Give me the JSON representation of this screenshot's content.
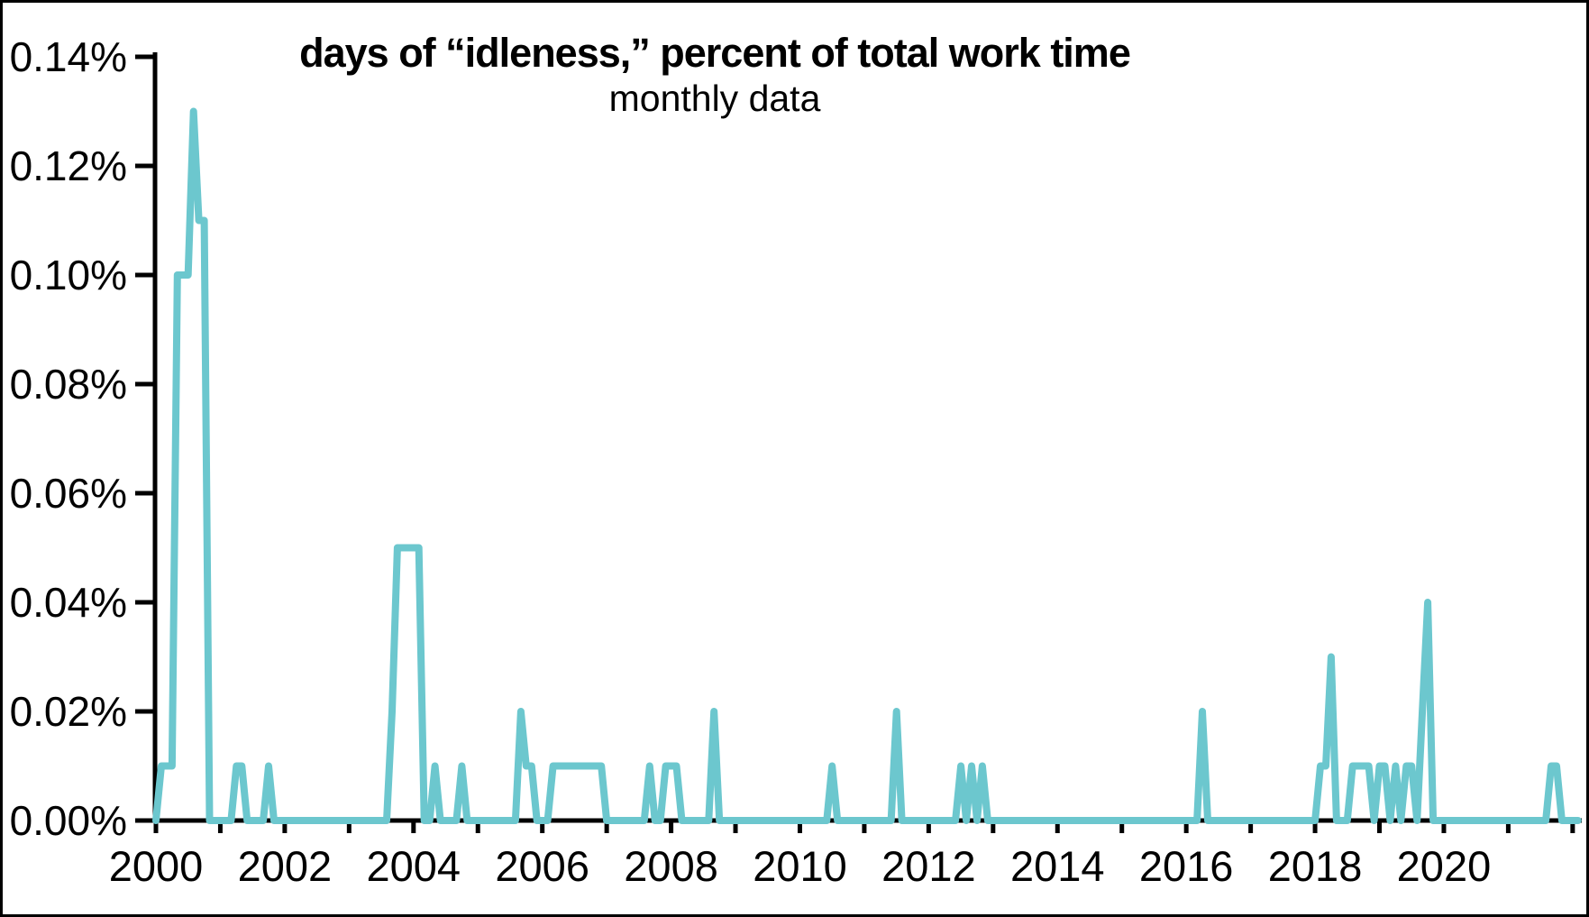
{
  "chart_data": {
    "type": "line",
    "title": "days of “idleness,” percent of total work time",
    "subtitle": "monthly data",
    "frequency": "monthly",
    "unit": "percent of total work time",
    "x_start": "2000-01",
    "x_end": "2022-02",
    "ylim": [
      0,
      0.14
    ],
    "y_tick_step": 0.02,
    "y_tick_labels": [
      "0.14%",
      "0.12%",
      "0.10%",
      "0.08%",
      "0.06%",
      "0.04%",
      "0.02%",
      "0.00%"
    ],
    "x_tick_labeled_years": [
      2000,
      2002,
      2004,
      2006,
      2008,
      2010,
      2012,
      2014,
      2016,
      2018,
      2020
    ],
    "x_minor_ticks": "one tick per year, 2000 through 2022",
    "grid": false,
    "legend": "none",
    "line_color": "#6CC7CE",
    "axis_color": "#000000",
    "background_color": "#FFFFFF",
    "fill_value": 0,
    "nonzero_points": {
      "2000-02": 0.01,
      "2000-03": 0.01,
      "2000-04": 0.01,
      "2000-05": 0.1,
      "2000-06": 0.1,
      "2000-07": 0.1,
      "2000-08": 0.13,
      "2000-09": 0.11,
      "2000-10": 0.11,
      "2001-04": 0.01,
      "2001-05": 0.01,
      "2001-10": 0.01,
      "2003-09": 0.02,
      "2003-10": 0.05,
      "2003-11": 0.05,
      "2003-12": 0.05,
      "2004-01": 0.05,
      "2004-02": 0.05,
      "2004-05": 0.01,
      "2004-10": 0.01,
      "2005-09": 0.02,
      "2005-10": 0.01,
      "2005-11": 0.01,
      "2006-03": 0.01,
      "2006-04": 0.01,
      "2006-05": 0.01,
      "2006-06": 0.01,
      "2006-07": 0.01,
      "2006-08": 0.01,
      "2006-09": 0.01,
      "2006-10": 0.01,
      "2006-11": 0.01,
      "2006-12": 0.01,
      "2007-09": 0.01,
      "2007-12": 0.01,
      "2008-01": 0.01,
      "2008-02": 0.01,
      "2008-09": 0.02,
      "2010-07": 0.01,
      "2011-07": 0.02,
      "2012-07": 0.01,
      "2012-09": 0.01,
      "2012-11": 0.01,
      "2016-04": 0.02,
      "2018-02": 0.01,
      "2018-03": 0.01,
      "2018-04": 0.03,
      "2018-08": 0.01,
      "2018-09": 0.01,
      "2018-10": 0.01,
      "2018-11": 0.01,
      "2019-01": 0.01,
      "2019-02": 0.01,
      "2019-04": 0.01,
      "2019-06": 0.01,
      "2019-07": 0.01,
      "2019-09": 0.02,
      "2019-10": 0.04,
      "2021-09": 0.01,
      "2021-10": 0.01
    }
  }
}
